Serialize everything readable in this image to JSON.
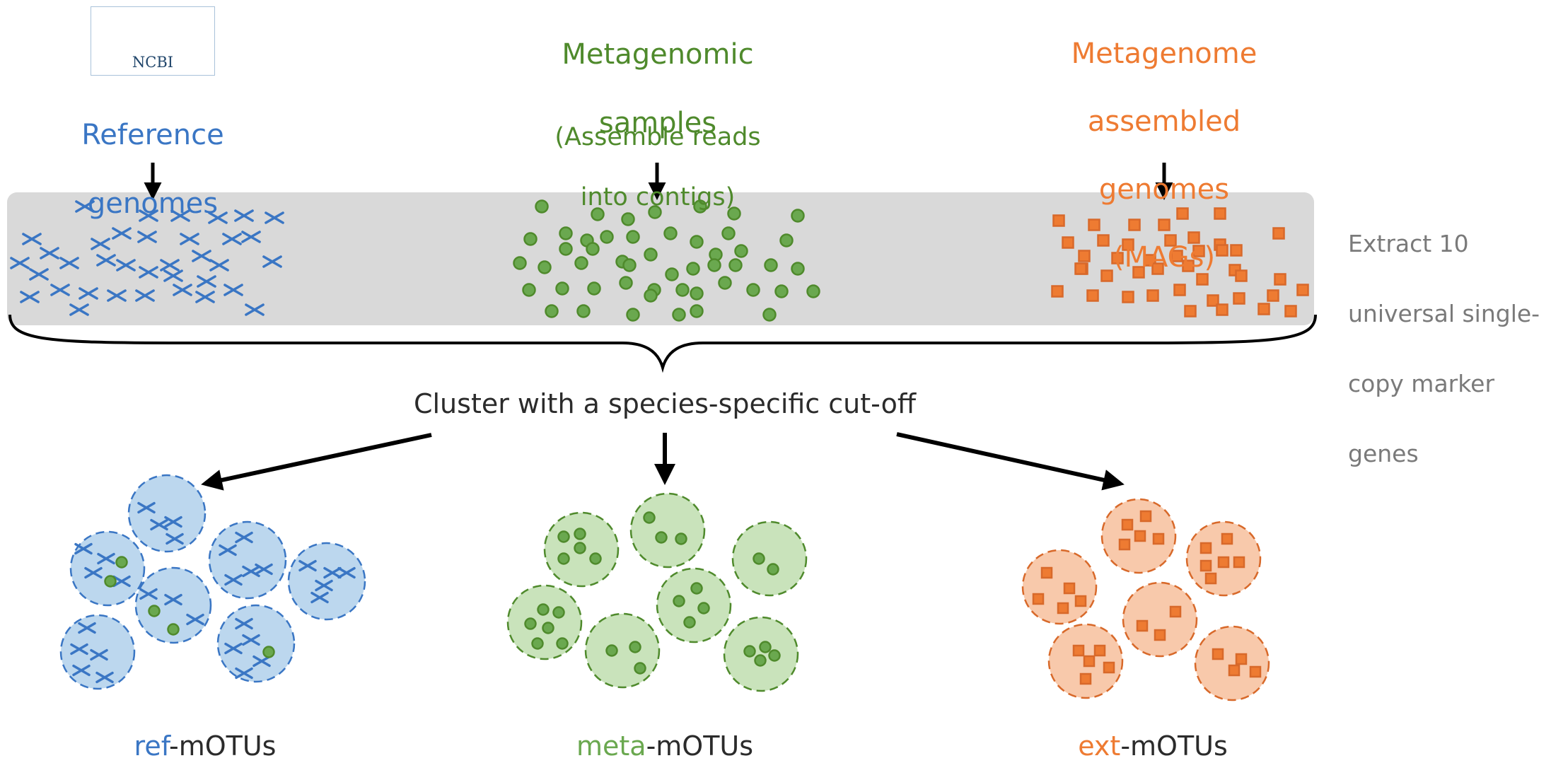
{
  "logo": {
    "text": "NCBI"
  },
  "sources": {
    "reference": {
      "lines": [
        "Reference",
        "genomes"
      ]
    },
    "metagenomic": {
      "title_lines": [
        "Metagenomic",
        "samples"
      ],
      "note_lines": [
        "(Assemble reads",
        "into contigs)"
      ]
    },
    "mags": {
      "lines": [
        "Metagenome",
        "assembled",
        "genomes",
        "(MAGs)"
      ]
    }
  },
  "extract": {
    "lines": [
      "Extract 10",
      "universal single-",
      "copy marker",
      "genes"
    ]
  },
  "cluster": {
    "text": "Cluster with a species-specific cut-off"
  },
  "groups": {
    "ref": {
      "prefix": "ref",
      "suffix": "-mOTUs"
    },
    "meta": {
      "prefix": "meta",
      "suffix": "-mOTUs"
    },
    "ext": {
      "prefix": "ext",
      "suffix": "-mOTUs"
    }
  },
  "colors": {
    "blue": "#3a76c4",
    "blue_fill": "#bcd7ee",
    "blue_stroke": "#3a76c4",
    "green": "#4f8a2c",
    "green_dot": "#6aa84f",
    "green_fill": "#c9e3bb",
    "orange": "#ee7b32",
    "orange_fill": "#f8c9ab",
    "orange_stroke": "#d8692a",
    "band": "#d9d9d9",
    "arrow": "#000000",
    "extract_text": "#7a7a7a"
  },
  "icons": {
    "marker_reference": "cross-icon",
    "marker_metagenomic": "circle-dot-icon",
    "marker_mag": "square-icon",
    "logo": "dna-helix-icon"
  }
}
